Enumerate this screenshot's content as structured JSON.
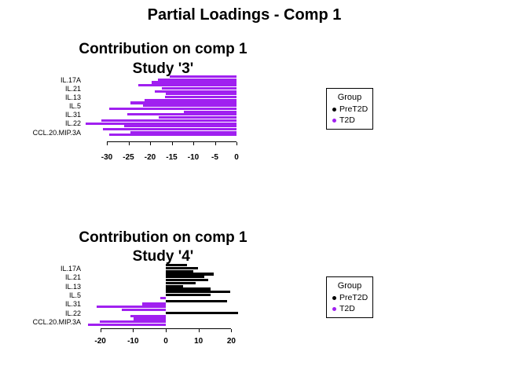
{
  "page_title": "Partial Loadings - Comp 1",
  "legend": {
    "title": "Group",
    "items": [
      {
        "label": "PreT2D",
        "color": "#000000"
      },
      {
        "label": "T2D",
        "color": "#A020F0"
      }
    ]
  },
  "chart_data": [
    {
      "type": "bar",
      "orientation": "horizontal",
      "title": "Contribution on comp 1",
      "subtitle": "Study '3'",
      "xlabel": "",
      "ylabel": "",
      "categories": [
        "IL.17A",
        "IL.21",
        "IL.13",
        "IL.5",
        "IL.31",
        "IL.22",
        "CCL.20.MIP.3A"
      ],
      "bars_per_category": 3,
      "series": [
        {
          "category": "IL.17A",
          "values": [
            -15.5,
            -18.2,
            -19.6
          ],
          "groups": [
            "T2D",
            "T2D",
            "T2D"
          ]
        },
        {
          "category": "IL.21",
          "values": [
            -22.7,
            -17.3,
            -18.9
          ],
          "groups": [
            "T2D",
            "T2D",
            "T2D"
          ]
        },
        {
          "category": "IL.13",
          "values": [
            -16.3,
            -16.5,
            -21.3
          ],
          "groups": [
            "T2D",
            "T2D",
            "T2D"
          ]
        },
        {
          "category": "IL.5",
          "values": [
            -24.5,
            -21.6,
            -29.5
          ],
          "groups": [
            "T2D",
            "T2D",
            "T2D"
          ]
        },
        {
          "category": "IL.31",
          "values": [
            -12.2,
            -25.3,
            -18.0
          ],
          "groups": [
            "T2D",
            "T2D",
            "T2D"
          ]
        },
        {
          "category": "IL.22",
          "values": [
            -31.3,
            -34.9,
            -26.0
          ],
          "groups": [
            "T2D",
            "T2D",
            "T2D"
          ]
        },
        {
          "category": "CCL.20.MIP.3A",
          "values": [
            -30.9,
            -24.6,
            -29.5
          ],
          "groups": [
            "T2D",
            "T2D",
            "T2D"
          ]
        }
      ],
      "xticks": [
        -30,
        -25,
        -20,
        -15,
        -10,
        -5,
        0
      ],
      "xlim": [
        -35.5,
        0.5
      ],
      "grid": false,
      "legend_position": "right"
    },
    {
      "type": "bar",
      "orientation": "horizontal",
      "title": "Contribution on comp 1",
      "subtitle": "Study '4'",
      "xlabel": "",
      "ylabel": "",
      "categories": [
        "IL.17A",
        "IL.21",
        "IL.13",
        "IL.5",
        "IL.31",
        "IL.22",
        "CCL.20.MIP.3A"
      ],
      "bars_per_category": 3,
      "series": [
        {
          "category": "IL.17A",
          "values": [
            6.5,
            9.8,
            8.3
          ],
          "groups": [
            "PreT2D",
            "PreT2D",
            "PreT2D"
          ]
        },
        {
          "category": "IL.21",
          "values": [
            14.7,
            11.7,
            12.9
          ],
          "groups": [
            "PreT2D",
            "PreT2D",
            "PreT2D"
          ]
        },
        {
          "category": "IL.13",
          "values": [
            9.0,
            5.3,
            13.7
          ],
          "groups": [
            "PreT2D",
            "PreT2D",
            "PreT2D"
          ]
        },
        {
          "category": "IL.5",
          "values": [
            19.7,
            13.7,
            -1.7
          ],
          "groups": [
            "PreT2D",
            "PreT2D",
            "T2D"
          ]
        },
        {
          "category": "IL.31",
          "values": [
            18.8,
            -7.2,
            -21.0
          ],
          "groups": [
            "PreT2D",
            "T2D",
            "T2D"
          ]
        },
        {
          "category": "IL.22",
          "values": [
            -13.4,
            22.1,
            -10.8
          ],
          "groups": [
            "T2D",
            "PreT2D",
            "T2D"
          ]
        },
        {
          "category": "CCL.20.MIP.3A",
          "values": [
            -9.8,
            -20.2,
            -23.8
          ],
          "groups": [
            "T2D",
            "T2D",
            "T2D"
          ]
        }
      ],
      "xticks": [
        -20,
        -10,
        0,
        10,
        20
      ],
      "xlim": [
        -25.4,
        22.8
      ],
      "grid": false,
      "legend_position": "right"
    }
  ]
}
